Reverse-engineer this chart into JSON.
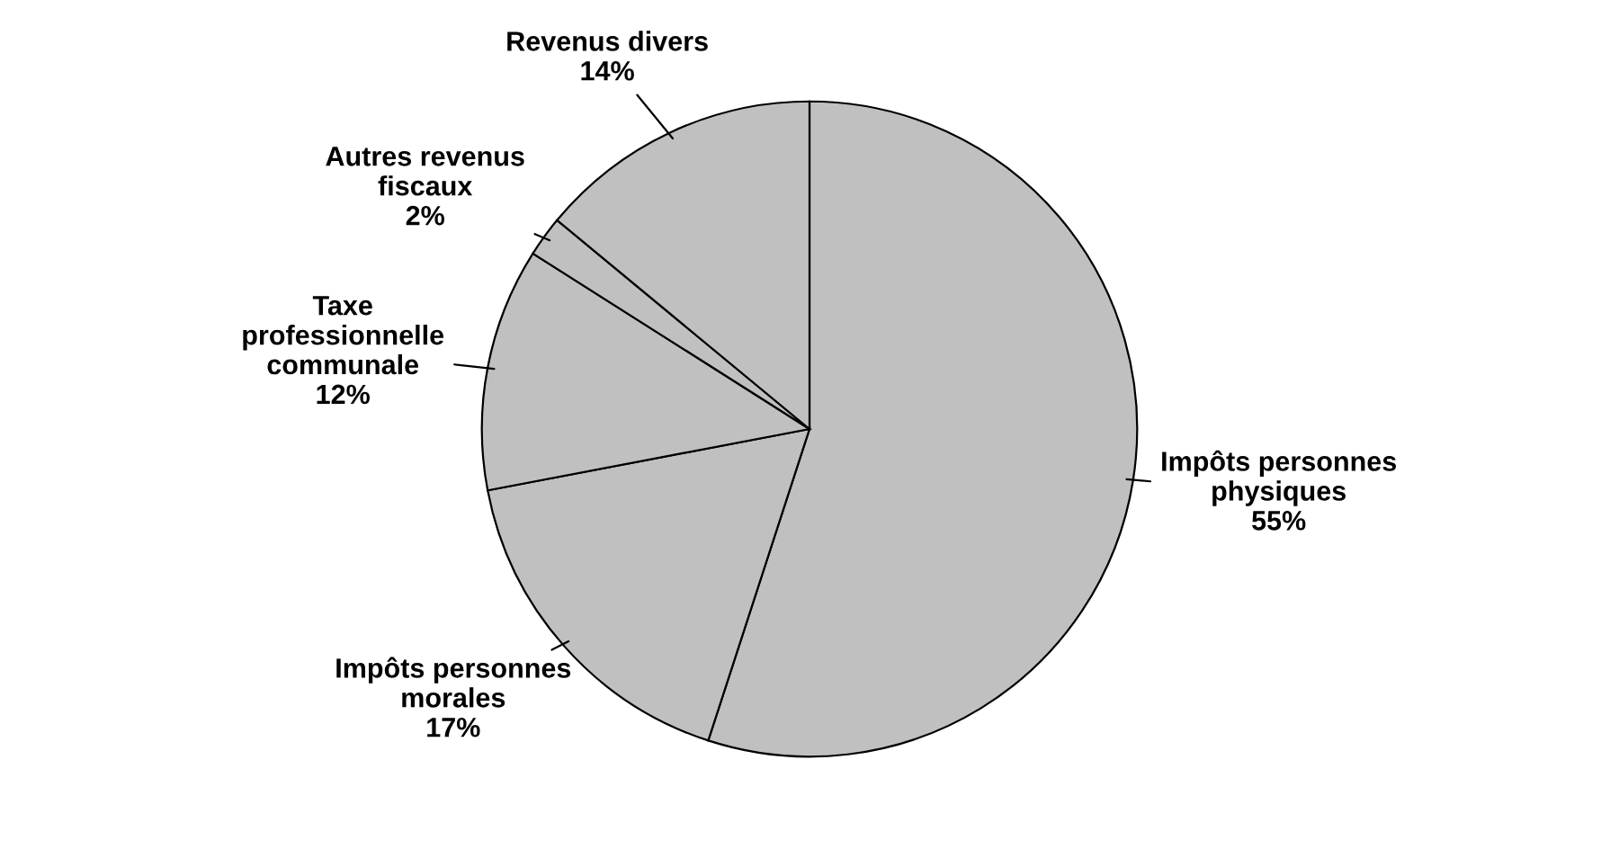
{
  "chart_data": {
    "type": "pie",
    "categories": [
      "Impôts personnes\nphysiques",
      "Impôts personnes\nmorales",
      "Taxe\nprofessionnelle\ncommunale",
      "Autres revenus\nfiscaux",
      "Revenus divers"
    ],
    "values": [
      55,
      17,
      12,
      2,
      14
    ],
    "colors": [
      "#c0c0c0",
      "#c0c0c0",
      "#c0c0c0",
      "#c0c0c0",
      "#c0c0c0"
    ],
    "value_labels": [
      "55%",
      "17%",
      "12%",
      "2%",
      "14%"
    ],
    "legend": false
  }
}
